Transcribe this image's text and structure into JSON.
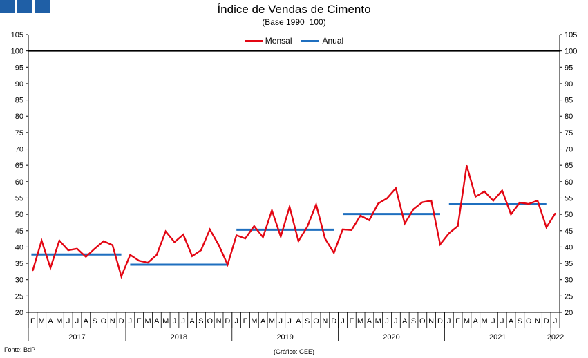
{
  "header": {
    "title": "Índice de Vendas de Cimento",
    "subtitle": "(Base 1990=100)"
  },
  "footer": {
    "source": "Fonte: BdP",
    "credit": "(Gráfico: GEE)"
  },
  "colors": {
    "mensal": "#e30613",
    "anual": "#1f6fbf",
    "reference": "#000000",
    "logo": "#1f5fa6"
  },
  "chart_data": {
    "type": "line",
    "title": "Índice de Vendas de Cimento",
    "subtitle": "(Base 1990=100)",
    "ylim": [
      20,
      105
    ],
    "yticks": [
      20,
      25,
      30,
      35,
      40,
      45,
      50,
      55,
      60,
      65,
      70,
      75,
      80,
      85,
      90,
      95,
      100,
      105
    ],
    "legend_position": "top-center",
    "grid": false,
    "month_labels": [
      "F",
      "M",
      "A",
      "M",
      "J",
      "J",
      "A",
      "S",
      "O",
      "N",
      "D",
      "J",
      "F",
      "M",
      "A",
      "M",
      "J",
      "J",
      "A",
      "S",
      "O",
      "N",
      "D",
      "J",
      "F",
      "M",
      "A",
      "M",
      "J",
      "J",
      "A",
      "S",
      "O",
      "N",
      "D",
      "J",
      "F",
      "M",
      "A",
      "M",
      "J",
      "J",
      "A",
      "S",
      "O",
      "N",
      "D",
      "J",
      "F",
      "M",
      "A",
      "M",
      "J",
      "J",
      "A",
      "S",
      "O",
      "N",
      "D",
      "J"
    ],
    "year_labels": [
      "2017",
      "2018",
      "2019",
      "2020",
      "2021",
      "2022"
    ],
    "reference_line": {
      "y": 100
    },
    "series": [
      {
        "name": "Mensal",
        "type": "line",
        "values": [
          32.8,
          42.0,
          33.6,
          42.0,
          39.0,
          39.5,
          37.0,
          39.5,
          41.8,
          40.6,
          31.0,
          37.6,
          35.8,
          35.2,
          37.6,
          44.8,
          41.5,
          43.8,
          37.2,
          39.0,
          45.4,
          40.6,
          34.6,
          43.6,
          42.6,
          46.4,
          43.0,
          51.2,
          43.2,
          52.3,
          41.8,
          46.2,
          53.0,
          42.6,
          38.2,
          45.4,
          45.2,
          49.6,
          48.2,
          53.3,
          54.9,
          58.0,
          47.2,
          51.6,
          53.7,
          54.2,
          40.8,
          44.2,
          46.4,
          64.9,
          55.4,
          57.0,
          54.2,
          57.3,
          50.0,
          53.6,
          53.2,
          54.2,
          46.0,
          50.3
        ]
      },
      {
        "name": "Anual",
        "type": "step",
        "segments": [
          {
            "year": "2017",
            "value": 37.7
          },
          {
            "year": "2018",
            "value": 34.6
          },
          {
            "year": "2019",
            "value": 45.3
          },
          {
            "year": "2020",
            "value": 50.1
          },
          {
            "year": "2021",
            "value": 53.1
          }
        ]
      }
    ]
  }
}
